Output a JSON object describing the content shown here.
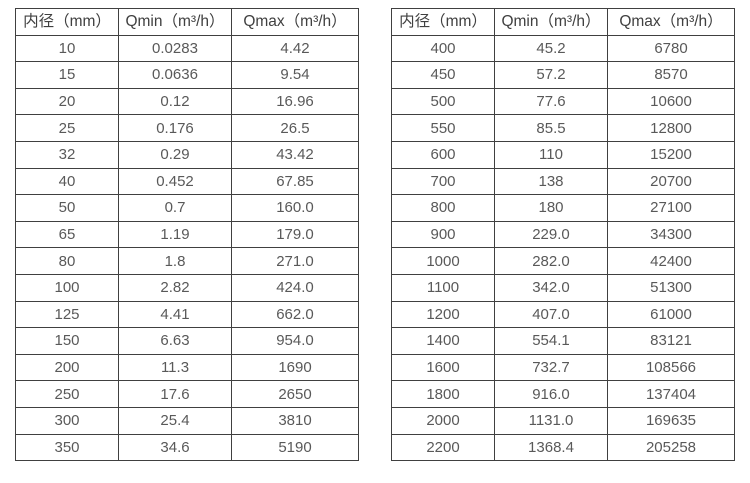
{
  "colors": {
    "background": "#ffffff",
    "border": "#404040",
    "header_text": "#404040",
    "cell_text": "#595959"
  },
  "tables": [
    {
      "name": "flow-spec-small-diameters",
      "headers": [
        "内径（mm）",
        "Qmin（m³/h）",
        "Qmax（m³/h）"
      ],
      "rows": [
        [
          "10",
          "0.0283",
          "4.42"
        ],
        [
          "15",
          "0.0636",
          "9.54"
        ],
        [
          "20",
          "0.12",
          "16.96"
        ],
        [
          "25",
          "0.176",
          "26.5"
        ],
        [
          "32",
          "0.29",
          "43.42"
        ],
        [
          "40",
          "0.452",
          "67.85"
        ],
        [
          "50",
          "0.7",
          "160.0"
        ],
        [
          "65",
          "1.19",
          "179.0"
        ],
        [
          "80",
          "1.8",
          "271.0"
        ],
        [
          "100",
          "2.82",
          "424.0"
        ],
        [
          "125",
          "4.41",
          "662.0"
        ],
        [
          "150",
          "6.63",
          "954.0"
        ],
        [
          "200",
          "11.3",
          "1690"
        ],
        [
          "250",
          "17.6",
          "2650"
        ],
        [
          "300",
          "25.4",
          "3810"
        ],
        [
          "350",
          "34.6",
          "5190"
        ]
      ]
    },
    {
      "name": "flow-spec-large-diameters",
      "headers": [
        "内径（mm）",
        "Qmin（m³/h）",
        "Qmax（m³/h）"
      ],
      "rows": [
        [
          "400",
          "45.2",
          "6780"
        ],
        [
          "450",
          "57.2",
          "8570"
        ],
        [
          "500",
          "77.6",
          "10600"
        ],
        [
          "550",
          "85.5",
          "12800"
        ],
        [
          "600",
          "110",
          "15200"
        ],
        [
          "700",
          "138",
          "20700"
        ],
        [
          "800",
          "180",
          "27100"
        ],
        [
          "900",
          "229.0",
          "34300"
        ],
        [
          "1000",
          "282.0",
          "42400"
        ],
        [
          "1100",
          "342.0",
          "51300"
        ],
        [
          "1200",
          "407.0",
          "61000"
        ],
        [
          "1400",
          "554.1",
          "83121"
        ],
        [
          "1600",
          "732.7",
          "108566"
        ],
        [
          "1800",
          "916.0",
          "137404"
        ],
        [
          "2000",
          "1131.0",
          "169635"
        ],
        [
          "2200",
          "1368.4",
          "205258"
        ]
      ]
    }
  ]
}
